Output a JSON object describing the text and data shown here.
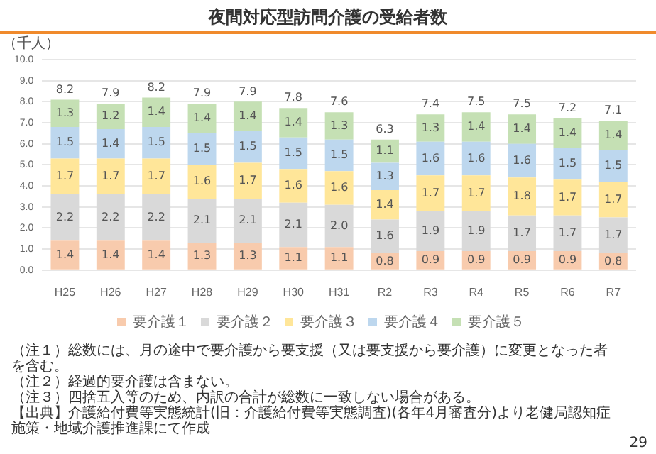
{
  "chart_data": {
    "type": "bar",
    "title": "夜間対応型訪問介護の受給者数",
    "ylabel": "（千人）",
    "categories": [
      "H25",
      "H26",
      "H27",
      "H28",
      "H29",
      "H30",
      "H31",
      "R2",
      "R3",
      "R4",
      "R5",
      "R6",
      "R7"
    ],
    "stacked": true,
    "grid": "y",
    "legend": "bottom",
    "series": [
      {
        "name": "要介護１",
        "color": "#f8cbad",
        "values": [
          1.4,
          1.4,
          1.4,
          1.3,
          1.3,
          1.1,
          1.1,
          0.8,
          0.9,
          0.9,
          0.9,
          0.9,
          0.8
        ],
        "value_labels": [
          "1.4",
          "1.4",
          "1.4",
          "1.3",
          "1.3",
          "1.1",
          "1.1",
          "0.8",
          "0.9",
          "0.9",
          "0.9",
          "0.9",
          "0.8"
        ]
      },
      {
        "name": "要介護２",
        "color": "#d9d9d9",
        "values": [
          2.2,
          2.2,
          2.2,
          2.1,
          2.1,
          2.1,
          2.0,
          1.6,
          1.9,
          1.9,
          1.7,
          1.7,
          1.7
        ],
        "value_labels": [
          "2.2",
          "2.2",
          "2.2",
          "2.1",
          "2.1",
          "2.1",
          "2.0",
          "1.6",
          "1.9",
          "1.9",
          "1.7",
          "1.7",
          "1.7"
        ]
      },
      {
        "name": "要介護３",
        "color": "#ffe699",
        "values": [
          1.7,
          1.7,
          1.7,
          1.6,
          1.7,
          1.6,
          1.6,
          1.4,
          1.7,
          1.7,
          1.8,
          1.7,
          1.7
        ],
        "value_labels": [
          "1.7",
          "1.7",
          "1.7",
          "1.6",
          "1.7",
          "1.6",
          "1.6",
          "1.4",
          "1.7",
          "1.7",
          "1.8",
          "1.7",
          "1.7"
        ]
      },
      {
        "name": "要介護４",
        "color": "#bdd7ee",
        "values": [
          1.5,
          1.4,
          1.5,
          1.5,
          1.5,
          1.5,
          1.5,
          1.3,
          1.6,
          1.6,
          1.6,
          1.5,
          1.5
        ],
        "value_labels": [
          "1.5",
          "1.4",
          "1.5",
          "1.5",
          "1.5",
          "1.5",
          "1.5",
          "1.3",
          "1.6",
          "1.6",
          "1.6",
          "1.5",
          "1.5"
        ]
      },
      {
        "name": "要介護５",
        "color": "#c5e0b4",
        "values": [
          1.3,
          1.2,
          1.4,
          1.4,
          1.4,
          1.4,
          1.3,
          1.1,
          1.3,
          1.4,
          1.4,
          1.4,
          1.4
        ],
        "value_labels": [
          "1.3",
          "1.2",
          "1.4",
          "1.4",
          "1.4",
          "1.4",
          "1.3",
          "1.1",
          "1.3",
          "1.4",
          "1.4",
          "1.4",
          "1.4"
        ]
      }
    ],
    "totals": [
      "8.2",
      "7.9",
      "8.2",
      "7.9",
      "7.9",
      "7.8",
      "7.6",
      "6.3",
      "7.4",
      "7.5",
      "7.5",
      "7.2",
      "7.1"
    ],
    "ylim": [
      0,
      10
    ],
    "yticks": [
      {
        "value": 0,
        "label": "0.0"
      },
      {
        "value": 1,
        "label": "1.0"
      },
      {
        "value": 2,
        "label": "2.0"
      },
      {
        "value": 3,
        "label": "3.0"
      },
      {
        "value": 4,
        "label": "4.0"
      },
      {
        "value": 5,
        "label": "5.0"
      },
      {
        "value": 6,
        "label": "6.0"
      },
      {
        "value": 7,
        "label": "7.0"
      },
      {
        "value": 8,
        "label": "8.0"
      },
      {
        "value": 9,
        "label": "9.0"
      },
      {
        "value": 10,
        "label": "10.0"
      }
    ],
    "annotations": [
      "（注１）総数には、月の途中で要介護から要支援（又は要支援から要介護）に変更となった者を含む。",
      "（注２）経過的要介護は含まない。",
      "（注３）四捨五入等のため、内訳の合計が総数に一致しない場合がある。",
      "【出典】介護給付費等実態統計(旧：介護給付費等実態調査)(各年4月審査分)より老健局認知症施策・地域介護推進課にて作成",
      "29"
    ]
  }
}
